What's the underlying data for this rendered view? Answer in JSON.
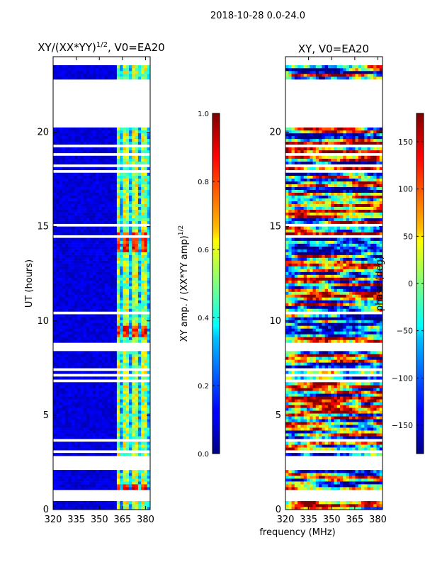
{
  "suptitle": "2018-10-28 0.0-24.0",
  "chart_data": [
    {
      "type": "heatmap",
      "title_text": "XY/(XX*YY)",
      "title_sup": "1/2",
      "title_suffix": ", V0=EA20",
      "ylabel": "UT (hours)",
      "xlim": [
        320,
        383
      ],
      "ylim": [
        0,
        24
      ],
      "xticks": [
        320,
        335,
        350,
        365,
        380
      ],
      "yticks": [
        0,
        5,
        10,
        15,
        20
      ],
      "colorbar": {
        "label_text": "XY amp. / (XX*YY amp)",
        "label_sup": "1/2",
        "range": [
          0.0,
          1.0
        ],
        "ticks": [
          0.0,
          0.2,
          0.4,
          0.6,
          0.8,
          1.0
        ],
        "tick_labels": [
          "0.0",
          "0.2",
          "0.4",
          "0.6",
          "0.8",
          "1.0"
        ]
      }
    },
    {
      "type": "heatmap",
      "title": "XY, V0=EA20",
      "ylabel": "phase (deg)",
      "xlim": [
        320,
        383
      ],
      "ylim": [
        0,
        24
      ],
      "xticks": [
        320,
        335,
        350,
        365,
        380
      ],
      "yticks": [
        0,
        5,
        10,
        15,
        20
      ],
      "colorbar": {
        "range": [
          -180,
          180
        ],
        "ticks": [
          -150,
          -100,
          -50,
          0,
          50,
          100,
          150
        ],
        "tick_labels": [
          "−150",
          "−100",
          "−50",
          "0",
          "50",
          "100",
          "150"
        ]
      }
    }
  ],
  "shared_xlabel": "frequency (MHz)",
  "data_gaps_hours": [
    [
      0.5,
      1.0
    ],
    [
      2.15,
      2.8
    ],
    [
      20.25,
      22.8
    ],
    [
      23.55,
      24.0
    ]
  ],
  "hot_channels_mhz": [
    362.5,
    367.5,
    373.5,
    379.0
  ]
}
